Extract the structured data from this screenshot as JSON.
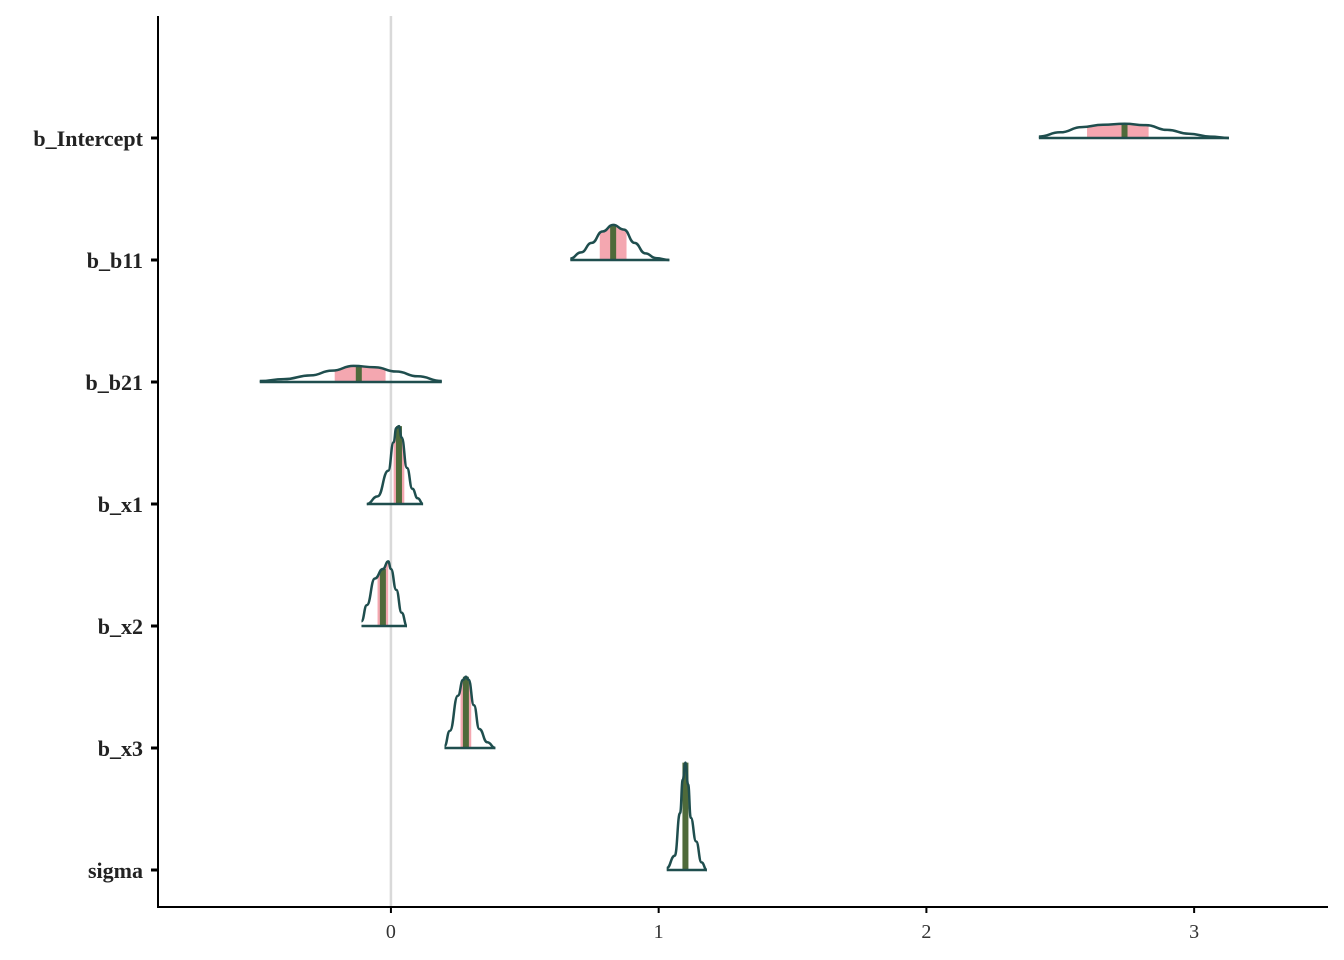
{
  "chart_data": {
    "type": "density-ridge",
    "title": "",
    "xlabel": "",
    "ylabel": "",
    "xlim": [
      -0.87,
      3.5
    ],
    "x_ticks": [
      0,
      1,
      2,
      3
    ],
    "x_tick_labels": [
      "0",
      "1",
      "2",
      "3"
    ],
    "reference_line_x": 0,
    "colors": {
      "outline": "#1f4e4e",
      "interval_fill": "#f4a7b0",
      "median_line": "#4e6a3a",
      "reference_line": "#d9d9d9",
      "axis": "#000000"
    },
    "parameters": [
      {
        "name": "b_Intercept",
        "median": 2.74,
        "interval": [
          2.6,
          2.83
        ],
        "support": [
          2.42,
          3.13
        ],
        "density": [
          [
            2.42,
            0.015
          ],
          [
            2.5,
            0.06
          ],
          [
            2.58,
            0.115
          ],
          [
            2.66,
            0.14
          ],
          [
            2.74,
            0.15
          ],
          [
            2.82,
            0.135
          ],
          [
            2.9,
            0.085
          ],
          [
            2.98,
            0.045
          ],
          [
            3.06,
            0.015
          ],
          [
            3.13,
            0.0
          ]
        ]
      },
      {
        "name": "b_b11",
        "median": 0.83,
        "interval": [
          0.78,
          0.88
        ],
        "support": [
          0.67,
          1.04
        ],
        "density": [
          [
            0.67,
            0.015
          ],
          [
            0.71,
            0.08
          ],
          [
            0.75,
            0.18
          ],
          [
            0.79,
            0.3
          ],
          [
            0.83,
            0.37
          ],
          [
            0.87,
            0.32
          ],
          [
            0.91,
            0.18
          ],
          [
            0.95,
            0.07
          ],
          [
            0.99,
            0.02
          ],
          [
            1.04,
            0.0
          ]
        ]
      },
      {
        "name": "b_b21",
        "median": -0.12,
        "interval": [
          -0.21,
          -0.02
        ],
        "support": [
          -0.49,
          0.19
        ],
        "density": [
          [
            -0.49,
            0.01
          ],
          [
            -0.4,
            0.03
          ],
          [
            -0.3,
            0.07
          ],
          [
            -0.22,
            0.12
          ],
          [
            -0.14,
            0.17
          ],
          [
            -0.06,
            0.155
          ],
          [
            0.02,
            0.11
          ],
          [
            0.1,
            0.06
          ],
          [
            0.19,
            0.01
          ]
        ]
      },
      {
        "name": "b_x1",
        "median": 0.03,
        "interval": [
          0.01,
          0.05
        ],
        "support": [
          -0.09,
          0.12
        ],
        "density": [
          [
            -0.09,
            0.0
          ],
          [
            -0.05,
            0.08
          ],
          [
            -0.01,
            0.35
          ],
          [
            0.01,
            0.65
          ],
          [
            0.02,
            0.8
          ],
          [
            0.03,
            0.82
          ],
          [
            0.04,
            0.7
          ],
          [
            0.06,
            0.38
          ],
          [
            0.08,
            0.16
          ],
          [
            0.1,
            0.06
          ],
          [
            0.12,
            0.0
          ]
        ]
      },
      {
        "name": "b_x2",
        "median": -0.03,
        "interval": [
          -0.05,
          -0.01
        ],
        "support": [
          -0.11,
          0.06
        ],
        "density": [
          [
            -0.11,
            0.05
          ],
          [
            -0.09,
            0.22
          ],
          [
            -0.06,
            0.5
          ],
          [
            -0.03,
            0.6
          ],
          [
            -0.01,
            0.68
          ],
          [
            0.0,
            0.6
          ],
          [
            0.02,
            0.38
          ],
          [
            0.04,
            0.14
          ],
          [
            0.06,
            0.0
          ]
        ]
      },
      {
        "name": "b_x3",
        "median": 0.28,
        "interval": [
          0.26,
          0.3
        ],
        "support": [
          0.2,
          0.39
        ],
        "density": [
          [
            0.2,
            0.02
          ],
          [
            0.22,
            0.18
          ],
          [
            0.25,
            0.55
          ],
          [
            0.27,
            0.72
          ],
          [
            0.28,
            0.75
          ],
          [
            0.29,
            0.72
          ],
          [
            0.31,
            0.45
          ],
          [
            0.33,
            0.2
          ],
          [
            0.36,
            0.06
          ],
          [
            0.39,
            0.0
          ]
        ]
      },
      {
        "name": "sigma",
        "median": 1.1,
        "interval": [
          1.09,
          1.11
        ],
        "support": [
          1.03,
          1.18
        ],
        "density": [
          [
            1.03,
            0.02
          ],
          [
            1.06,
            0.15
          ],
          [
            1.08,
            0.6
          ],
          [
            1.09,
            0.95
          ],
          [
            1.1,
            1.13
          ],
          [
            1.11,
            0.9
          ],
          [
            1.12,
            0.55
          ],
          [
            1.14,
            0.3
          ],
          [
            1.16,
            0.08
          ],
          [
            1.18,
            0.0
          ]
        ]
      }
    ]
  }
}
